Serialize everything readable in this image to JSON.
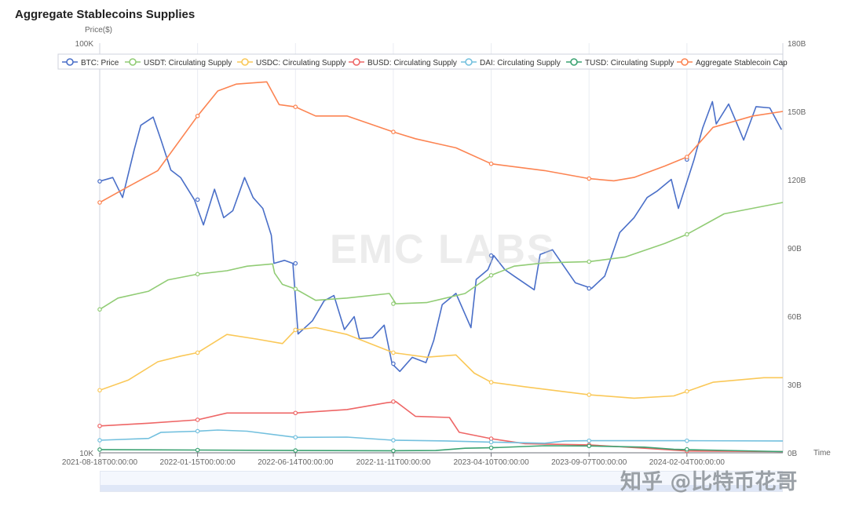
{
  "chart_data": {
    "type": "line",
    "title": "Aggregate Stablecoins Supplies",
    "y_left_label": "Price($)",
    "y_left_ticks": [
      "100K",
      "10K"
    ],
    "y_left_scale": "log",
    "y_left_range": [
      10000,
      100000
    ],
    "y_right_ticks": [
      "180B",
      "150B",
      "120B",
      "90B",
      "60B",
      "30B",
      "0B"
    ],
    "y_right_range": [
      0,
      180
    ],
    "x_label": "Time",
    "x_range": [
      "2021-08-18",
      "2024-06-30"
    ],
    "x_ticks": [
      "2021-08-18T00:00:00",
      "2022-01-15T00:00:00",
      "2022-06-14T00:00:00",
      "2022-11-11T00:00:00",
      "2023-04-10T00:00:00",
      "2023-09-07T00:00:00",
      "2024-02-04T00:00:00"
    ],
    "grid": "vertical lines at x ticks",
    "legend_position": "top",
    "series": [
      {
        "name": "BTC: Price",
        "axis": "left",
        "color": "#4a6fc8",
        "points": [
          [
            "2021-08-18",
            46000
          ],
          [
            "2021-09-07",
            47000
          ],
          [
            "2021-09-22",
            42000
          ],
          [
            "2021-10-10",
            55000
          ],
          [
            "2021-10-20",
            63000
          ],
          [
            "2021-11-08",
            66000
          ],
          [
            "2021-11-20",
            58000
          ],
          [
            "2021-12-05",
            49000
          ],
          [
            "2021-12-20",
            47000
          ],
          [
            "2022-01-10",
            41500
          ],
          [
            "2022-01-24",
            36000
          ],
          [
            "2022-02-10",
            44000
          ],
          [
            "2022-02-24",
            37500
          ],
          [
            "2022-03-10",
            39000
          ],
          [
            "2022-03-28",
            47000
          ],
          [
            "2022-04-10",
            42000
          ],
          [
            "2022-04-25",
            39500
          ],
          [
            "2022-05-08",
            34000
          ],
          [
            "2022-05-12",
            29000
          ],
          [
            "2022-05-28",
            29500
          ],
          [
            "2022-06-10",
            29000
          ],
          [
            "2022-06-18",
            19500
          ],
          [
            "2022-07-10",
            21000
          ],
          [
            "2022-07-28",
            23500
          ],
          [
            "2022-08-12",
            24200
          ],
          [
            "2022-08-28",
            20000
          ],
          [
            "2022-09-12",
            21500
          ],
          [
            "2022-09-20",
            19000
          ],
          [
            "2022-10-10",
            19100
          ],
          [
            "2022-10-28",
            20500
          ],
          [
            "2022-11-09",
            16500
          ],
          [
            "2022-11-21",
            15800
          ],
          [
            "2022-12-10",
            17100
          ],
          [
            "2022-12-31",
            16600
          ],
          [
            "2023-01-12",
            18800
          ],
          [
            "2023-01-25",
            23000
          ],
          [
            "2023-02-15",
            24500
          ],
          [
            "2023-03-10",
            20200
          ],
          [
            "2023-03-18",
            26500
          ],
          [
            "2023-04-05",
            28000
          ],
          [
            "2023-04-14",
            30300
          ],
          [
            "2023-05-01",
            28000
          ],
          [
            "2023-05-15",
            27000
          ],
          [
            "2023-06-15",
            25000
          ],
          [
            "2023-06-24",
            30500
          ],
          [
            "2023-07-13",
            31300
          ],
          [
            "2023-08-17",
            26000
          ],
          [
            "2023-09-11",
            25200
          ],
          [
            "2023-10-01",
            27000
          ],
          [
            "2023-10-24",
            34500
          ],
          [
            "2023-11-15",
            37500
          ],
          [
            "2023-12-05",
            42000
          ],
          [
            "2023-12-20",
            43500
          ],
          [
            "2024-01-11",
            46500
          ],
          [
            "2024-01-22",
            39500
          ],
          [
            "2024-02-15",
            52000
          ],
          [
            "2024-02-28",
            62000
          ],
          [
            "2024-03-14",
            72000
          ],
          [
            "2024-03-20",
            63500
          ],
          [
            "2024-04-08",
            71000
          ],
          [
            "2024-04-20",
            64000
          ],
          [
            "2024-05-01",
            58000
          ],
          [
            "2024-05-20",
            70000
          ],
          [
            "2024-06-10",
            69500
          ],
          [
            "2024-06-28",
            61500
          ]
        ]
      },
      {
        "name": "USDT: Circulating Supply",
        "axis": "right",
        "color": "#91cc75",
        "points": [
          [
            "2021-08-18",
            63
          ],
          [
            "2021-09-15",
            68
          ],
          [
            "2021-11-01",
            71
          ],
          [
            "2021-12-01",
            76
          ],
          [
            "2022-01-15",
            78.5
          ],
          [
            "2022-03-01",
            80
          ],
          [
            "2022-04-01",
            82
          ],
          [
            "2022-05-10",
            83
          ],
          [
            "2022-05-13",
            79
          ],
          [
            "2022-05-25",
            74
          ],
          [
            "2022-06-14",
            72
          ],
          [
            "2022-07-15",
            67
          ],
          [
            "2022-09-01",
            68
          ],
          [
            "2022-11-05",
            70
          ],
          [
            "2022-11-15",
            65.5
          ],
          [
            "2023-01-01",
            66
          ],
          [
            "2023-03-01",
            70
          ],
          [
            "2023-04-10",
            78
          ],
          [
            "2023-05-15",
            82
          ],
          [
            "2023-07-01",
            83.5
          ],
          [
            "2023-09-07",
            84
          ],
          [
            "2023-11-01",
            86
          ],
          [
            "2024-01-01",
            92
          ],
          [
            "2024-02-04",
            96
          ],
          [
            "2024-04-01",
            105
          ],
          [
            "2024-06-30",
            110
          ]
        ]
      },
      {
        "name": "USDC: Circulating Supply",
        "axis": "right",
        "color": "#fac858",
        "points": [
          [
            "2021-08-18",
            27.5
          ],
          [
            "2021-10-01",
            32
          ],
          [
            "2021-11-15",
            40
          ],
          [
            "2021-12-20",
            42.5
          ],
          [
            "2022-01-15",
            44
          ],
          [
            "2022-03-01",
            52
          ],
          [
            "2022-04-15",
            50
          ],
          [
            "2022-05-25",
            48
          ],
          [
            "2022-06-14",
            54
          ],
          [
            "2022-07-15",
            55
          ],
          [
            "2022-09-01",
            52
          ],
          [
            "2022-11-11",
            44
          ],
          [
            "2023-01-01",
            42
          ],
          [
            "2023-02-15",
            43
          ],
          [
            "2023-03-15",
            35
          ],
          [
            "2023-04-10",
            31
          ],
          [
            "2023-06-01",
            29
          ],
          [
            "2023-09-07",
            25.5
          ],
          [
            "2023-11-15",
            24
          ],
          [
            "2024-01-15",
            25
          ],
          [
            "2024-02-04",
            27
          ],
          [
            "2024-03-15",
            31
          ],
          [
            "2024-06-01",
            33
          ],
          [
            "2024-06-30",
            33
          ]
        ]
      },
      {
        "name": "BUSD: Circulating Supply",
        "axis": "right",
        "color": "#ee6666",
        "points": [
          [
            "2021-08-18",
            11.8
          ],
          [
            "2021-11-01",
            13
          ],
          [
            "2022-01-15",
            14.5
          ],
          [
            "2022-03-01",
            17.5
          ],
          [
            "2022-06-14",
            17.5
          ],
          [
            "2022-09-01",
            19
          ],
          [
            "2022-11-01",
            22
          ],
          [
            "2022-11-15",
            22.5
          ],
          [
            "2022-12-15",
            16
          ],
          [
            "2023-02-05",
            15.5
          ],
          [
            "2023-02-20",
            9
          ],
          [
            "2023-04-10",
            6.2
          ],
          [
            "2023-06-01",
            4
          ],
          [
            "2023-09-07",
            3.5
          ],
          [
            "2023-12-01",
            2
          ],
          [
            "2024-02-04",
            0.8
          ],
          [
            "2024-06-30",
            0.5
          ]
        ]
      },
      {
        "name": "DAI: Circulating Supply",
        "axis": "right",
        "color": "#73c0de",
        "points": [
          [
            "2021-08-18",
            5.5
          ],
          [
            "2021-11-01",
            6.3
          ],
          [
            "2021-11-20",
            9
          ],
          [
            "2022-01-15",
            9.5
          ],
          [
            "2022-02-15",
            10
          ],
          [
            "2022-04-01",
            9.5
          ],
          [
            "2022-06-14",
            6.8
          ],
          [
            "2022-09-01",
            6.9
          ],
          [
            "2022-11-11",
            5.5
          ],
          [
            "2023-02-01",
            5.2
          ],
          [
            "2023-04-10",
            4.7
          ],
          [
            "2023-07-01",
            4.2
          ],
          [
            "2023-08-01",
            5.2
          ],
          [
            "2023-09-07",
            5.3
          ],
          [
            "2024-02-04",
            5.3
          ],
          [
            "2024-06-30",
            5.2
          ]
        ]
      },
      {
        "name": "TUSD: Circulating Supply",
        "axis": "right",
        "color": "#3ba272",
        "points": [
          [
            "2021-08-18",
            1.4
          ],
          [
            "2022-01-15",
            1.2
          ],
          [
            "2022-06-14",
            1.0
          ],
          [
            "2022-11-11",
            0.9
          ],
          [
            "2023-01-15",
            1.0
          ],
          [
            "2023-03-01",
            2.0
          ],
          [
            "2023-04-10",
            2.2
          ],
          [
            "2023-07-01",
            3.1
          ],
          [
            "2023-09-07",
            3.0
          ],
          [
            "2023-12-01",
            2.5
          ],
          [
            "2024-01-15",
            1.5
          ],
          [
            "2024-06-30",
            0.5
          ]
        ]
      },
      {
        "name": "Aggregate Stablecoin Cap",
        "axis": "right",
        "color": "#fc8452",
        "points": [
          [
            "2021-08-18",
            110
          ],
          [
            "2021-10-01",
            117
          ],
          [
            "2021-11-15",
            124
          ],
          [
            "2022-01-15",
            148
          ],
          [
            "2022-02-15",
            159
          ],
          [
            "2022-03-15",
            162
          ],
          [
            "2022-05-01",
            163
          ],
          [
            "2022-05-20",
            153
          ],
          [
            "2022-06-14",
            152
          ],
          [
            "2022-07-15",
            148
          ],
          [
            "2022-09-01",
            148
          ],
          [
            "2022-11-11",
            141
          ],
          [
            "2022-12-15",
            138
          ],
          [
            "2023-01-15",
            136
          ],
          [
            "2023-02-15",
            134
          ],
          [
            "2023-04-10",
            127
          ],
          [
            "2023-07-01",
            124
          ],
          [
            "2023-09-07",
            120.5
          ],
          [
            "2023-10-15",
            119.5
          ],
          [
            "2023-11-15",
            121
          ],
          [
            "2024-01-01",
            126
          ],
          [
            "2024-02-04",
            130
          ],
          [
            "2024-03-15",
            143
          ],
          [
            "2024-05-15",
            148
          ],
          [
            "2024-06-30",
            150
          ]
        ]
      }
    ]
  },
  "watermark": "EMC LABS",
  "credit": "知乎 @比特币花哥"
}
